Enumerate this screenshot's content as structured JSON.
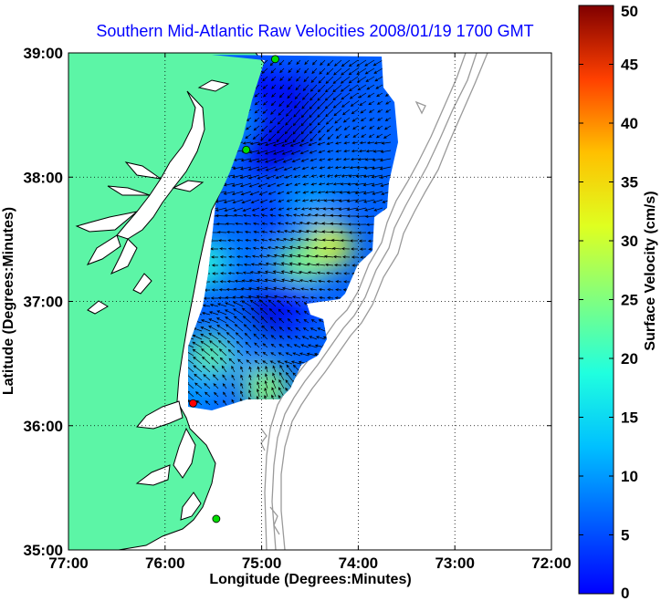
{
  "chart_data": {
    "type": "vector-field-map",
    "title": "Southern Mid-Atlantic Raw Velocities 2008/01/19 1700 GMT",
    "xlabel": "Longitude (Degrees:Minutes)",
    "ylabel": "Latitude (Degrees:Minutes)",
    "xlim": [
      -77,
      -72
    ],
    "ylim": [
      35,
      39
    ],
    "grid": true,
    "x_ticks": [
      {
        "value": -77,
        "label": "77:00"
      },
      {
        "value": -76,
        "label": "76:00"
      },
      {
        "value": -75,
        "label": "75:00"
      },
      {
        "value": -74,
        "label": "74:00"
      },
      {
        "value": -73,
        "label": "73:00"
      },
      {
        "value": -72,
        "label": "72:00"
      }
    ],
    "y_ticks": [
      {
        "value": 35,
        "label": "35:00"
      },
      {
        "value": 36,
        "label": "36:00"
      },
      {
        "value": 37,
        "label": "37:00"
      },
      {
        "value": 38,
        "label": "38:00"
      },
      {
        "value": 39,
        "label": "39:00"
      }
    ],
    "colorbar": {
      "label": "Surface Velocity (cm/s)",
      "range": [
        0,
        50
      ],
      "ticks": [
        0,
        5,
        10,
        15,
        20,
        25,
        30,
        35,
        40,
        45,
        50
      ],
      "colormap": "jet"
    },
    "speed_field": [
      {
        "lon": -74.3,
        "lat": 37.45,
        "speed": 30
      },
      {
        "lon": -74.6,
        "lat": 37.3,
        "speed": 25
      },
      {
        "lon": -74.75,
        "lat": 38.3,
        "speed": 4
      },
      {
        "lon": -74.55,
        "lat": 38.65,
        "speed": 5
      },
      {
        "lon": -75.0,
        "lat": 38.7,
        "speed": 6
      },
      {
        "lon": -74.9,
        "lat": 38.2,
        "speed": 5
      },
      {
        "lon": -74.95,
        "lat": 37.7,
        "speed": 9
      },
      {
        "lon": -74.9,
        "lat": 36.9,
        "speed": 3
      },
      {
        "lon": -75.25,
        "lat": 36.6,
        "speed": 12
      },
      {
        "lon": -75.55,
        "lat": 36.55,
        "speed": 24
      },
      {
        "lon": -74.95,
        "lat": 36.3,
        "speed": 26
      },
      {
        "lon": -75.7,
        "lat": 36.3,
        "speed": 14
      },
      {
        "lon": -75.6,
        "lat": 37.3,
        "speed": 21
      },
      {
        "lon": -75.5,
        "lat": 38.5,
        "speed": 20
      },
      {
        "lon": -74.7,
        "lat": 37.0,
        "speed": 7
      },
      {
        "lon": -75.2,
        "lat": 37.4,
        "speed": 12
      },
      {
        "lon": -74.2,
        "lat": 38.7,
        "speed": 10
      },
      {
        "lon": -74.1,
        "lat": 38.0,
        "speed": 12
      },
      {
        "lon": -74.5,
        "lat": 37.8,
        "speed": 14
      }
    ],
    "sites": [
      {
        "lon": -74.86,
        "lat": 38.95,
        "color": "#00dd00"
      },
      {
        "lon": -75.16,
        "lat": 38.22,
        "color": "#00dd00"
      },
      {
        "lon": -75.71,
        "lat": 36.18,
        "color": "#ff0000"
      },
      {
        "lon": -75.47,
        "lat": 35.25,
        "color": "#00dd00"
      }
    ],
    "colors": {
      "land": "#5cf5a6",
      "ocean": "#ffffff",
      "coast": "#000000",
      "bathymetry": "#9a9a9a",
      "grid": "#000000",
      "arrows": "#000000"
    }
  }
}
